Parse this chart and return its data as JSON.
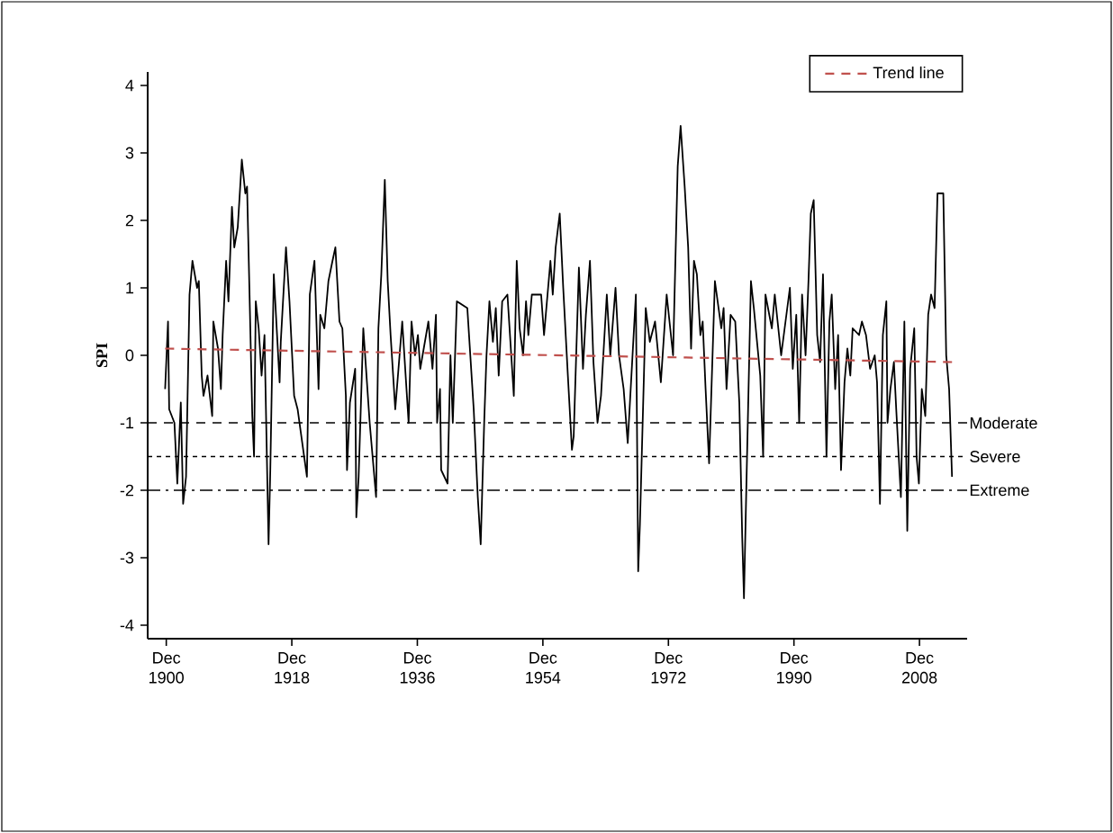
{
  "chart_data": {
    "type": "line",
    "ylabel": "SPI",
    "xlim": [
      "1898-04",
      "2015-10"
    ],
    "ylim": [
      -4.2,
      4.2
    ],
    "xticks": [
      {
        "value": "1900-12",
        "label": "Dec 1900"
      },
      {
        "value": "1918-12",
        "label": "Dec 1918"
      },
      {
        "value": "1936-12",
        "label": "Dec 1936"
      },
      {
        "value": "1954-12",
        "label": "Dec 1954"
      },
      {
        "value": "1972-12",
        "label": "Dec 1972"
      },
      {
        "value": "1990-12",
        "label": "Dec 1990"
      },
      {
        "value": "2008-12",
        "label": "Dec 2008"
      }
    ],
    "yticks": [
      -4,
      -3,
      -2,
      -1,
      0,
      1,
      2,
      3,
      4
    ],
    "grid": false,
    "legend": "top right",
    "series": [
      {
        "color": "#000000",
        "line_style": "solid",
        "x": [
          "1900-10",
          "1901-03",
          "1901-05",
          "1902-02",
          "1902-07",
          "1903-01",
          "1903-05",
          "1903-10",
          "1904-04",
          "1904-09",
          "1905-05",
          "1905-08",
          "1906-01",
          "1906-04",
          "1906-11",
          "1907-07",
          "1907-09",
          "1908-05",
          "1908-10",
          "1909-01",
          "1909-07",
          "1909-11",
          "1910-05",
          "1910-09",
          "1911-03",
          "1911-10",
          "1912-04",
          "1912-07",
          "1912-11",
          "1913-04",
          "1913-07",
          "1913-10",
          "1914-03",
          "1914-08",
          "1915-01",
          "1915-08",
          "1915-11",
          "1916-05",
          "1917-03",
          "1917-05",
          "1918-02",
          "1918-08",
          "1919-04",
          "1919-10",
          "1921-02",
          "1921-07",
          "1922-03",
          "1922-10",
          "1923-01",
          "1923-08",
          "1924-03",
          "1924-10",
          "1925-03",
          "1925-10",
          "1926-03",
          "1926-09",
          "1926-11",
          "1927-04",
          "1928-01",
          "1928-03",
          "1928-07",
          "1929-03",
          "1930-02",
          "1930-05",
          "1931-01",
          "1931-05",
          "1931-10",
          "1932-04",
          "1932-09",
          "1933-02",
          "1933-10",
          "1934-10",
          "1935-09",
          "1936-02",
          "1936-08",
          "1937-01",
          "1937-05",
          "1938-07",
          "1939-02",
          "1939-08",
          "1939-10",
          "1940-03",
          "1940-05",
          "1941-04",
          "1941-09",
          "1942-01",
          "1942-08",
          "1944-02",
          "1945-01",
          "1945-08",
          "1946-01",
          "1946-07",
          "1946-11",
          "1947-04",
          "1947-10",
          "1948-03",
          "1948-08",
          "1949-02",
          "1949-11",
          "1950-10",
          "1951-03",
          "1951-08",
          "1952-02",
          "1952-07",
          "1952-11",
          "1953-05",
          "1954-09",
          "1955-02",
          "1956-01",
          "1956-05",
          "1956-10",
          "1957-05",
          "1957-11",
          "1958-07",
          "1959-02",
          "1959-05",
          "1960-02",
          "1960-09",
          "1961-02",
          "1961-09",
          "1962-03",
          "1962-10",
          "1963-04",
          "1964-02",
          "1964-08",
          "1965-05",
          "1965-11",
          "1966-07",
          "1967-02",
          "1968-04",
          "1968-08",
          "1968-11",
          "1969-09",
          "1970-04",
          "1971-01",
          "1971-11",
          "1972-09",
          "1973-08",
          "1974-04",
          "1974-09",
          "1975-04",
          "1975-10",
          "1976-03",
          "1976-08",
          "1977-01",
          "1977-07",
          "1977-11",
          "1978-04",
          "1978-10",
          "1979-08",
          "1980-07",
          "1980-11",
          "1981-04",
          "1981-11",
          "1982-07",
          "1983-02",
          "1983-07",
          "1983-10",
          "1984-02",
          "1984-10",
          "1985-03",
          "1986-02",
          "1986-07",
          "1986-11",
          "1987-10",
          "1988-03",
          "1989-02",
          "1990-05",
          "1990-10",
          "1991-04",
          "1991-09",
          "1992-02",
          "1992-08",
          "1993-01",
          "1993-05",
          "1993-10",
          "1994-04",
          "1994-09",
          "1995-02",
          "1995-08",
          "1996-01",
          "1996-05",
          "1996-11",
          "1997-04",
          "1997-09",
          "1998-03",
          "1998-08",
          "1999-01",
          "1999-05",
          "2000-04",
          "2000-09",
          "2001-04",
          "2001-11",
          "2002-07",
          "2002-11",
          "2003-04",
          "2003-09",
          "2004-03",
          "2004-05",
          "2004-10",
          "2005-04",
          "2005-08",
          "2006-04",
          "2006-10",
          "2007-03",
          "2007-08",
          "2008-03",
          "2008-07",
          "2008-11",
          "2009-04",
          "2009-10",
          "2010-03",
          "2010-08",
          "2011-02",
          "2011-07",
          "2011-11",
          "2012-05",
          "2012-10",
          "2013-03",
          "2013-08"
        ],
        "values": [
          -0.5,
          0.5,
          -0.8,
          -1.0,
          -1.9,
          -0.7,
          -2.2,
          -1.8,
          0.9,
          1.4,
          1.0,
          1.1,
          -0.3,
          -0.6,
          -0.3,
          -0.9,
          0.5,
          0.1,
          -0.5,
          0.3,
          1.4,
          0.8,
          2.2,
          1.6,
          1.9,
          2.9,
          2.4,
          2.5,
          1.0,
          -0.9,
          -1.5,
          0.8,
          0.4,
          -0.3,
          0.3,
          -2.8,
          -1.7,
          1.2,
          -0.4,
          0.2,
          1.6,
          0.8,
          -0.6,
          -0.8,
          -1.8,
          0.9,
          1.4,
          -0.5,
          0.6,
          0.4,
          1.1,
          1.4,
          1.6,
          0.5,
          0.4,
          -0.6,
          -1.7,
          -0.7,
          -0.2,
          -2.4,
          -1.8,
          0.4,
          -1.0,
          -1.3,
          -2.1,
          0.4,
          1.2,
          2.6,
          1.1,
          0.3,
          -0.8,
          0.5,
          -1.0,
          0.5,
          0.0,
          0.3,
          -0.2,
          0.5,
          -0.2,
          0.6,
          -1.0,
          -0.5,
          -1.7,
          -1.9,
          0.0,
          -1.0,
          0.8,
          0.7,
          -0.8,
          -2.1,
          -2.8,
          -1.0,
          0.0,
          0.8,
          0.2,
          0.7,
          -0.3,
          0.8,
          0.9,
          -0.6,
          1.4,
          0.4,
          0.0,
          0.8,
          0.3,
          0.9,
          0.9,
          0.3,
          1.4,
          0.9,
          1.6,
          2.1,
          1.0,
          -0.3,
          -1.4,
          -1.2,
          1.3,
          -0.2,
          0.6,
          1.4,
          -0.1,
          -1.0,
          -0.6,
          0.9,
          0.0,
          1.0,
          0.0,
          -0.5,
          -1.3,
          0.9,
          -3.2,
          -2.5,
          0.7,
          0.2,
          0.5,
          -0.4,
          0.9,
          0.0,
          2.8,
          3.4,
          2.5,
          1.6,
          0.1,
          1.4,
          1.2,
          0.3,
          0.5,
          -0.5,
          -1.6,
          1.1,
          0.4,
          0.7,
          -0.5,
          0.6,
          0.5,
          -0.7,
          -2.7,
          -3.6,
          -2.0,
          1.1,
          0.7,
          -0.3,
          -1.5,
          0.9,
          0.4,
          0.9,
          0.0,
          1.0,
          -0.2,
          0.6,
          -1.0,
          0.9,
          0.0,
          1.1,
          2.1,
          2.3,
          0.3,
          -0.1,
          1.2,
          -1.5,
          0.5,
          0.9,
          -0.5,
          0.3,
          -1.7,
          -0.4,
          0.1,
          -0.3,
          0.4,
          0.3,
          0.5,
          0.3,
          -0.2,
          0.0,
          -0.4,
          -2.2,
          0.3,
          0.8,
          -1.0,
          -0.5,
          -0.1,
          -0.8,
          -2.1,
          0.5,
          -2.6,
          -0.2,
          0.4,
          -1.5,
          -1.9,
          -0.5,
          -0.9,
          0.6,
          0.9,
          0.7,
          2.4,
          2.4,
          2.4,
          0.0,
          -0.5,
          -1.8
        ]
      },
      {
        "name": "Trend line",
        "color": "#c0504d",
        "line_style": "dashed",
        "x": [
          "1900-10",
          "2013-08"
        ],
        "values": [
          0.1,
          -0.1
        ]
      }
    ],
    "ref_lines": [
      {
        "axis": "y",
        "value": -1,
        "label": "Moderate",
        "color": "#000000",
        "line_style": "dashed"
      },
      {
        "axis": "y",
        "value": -1.5,
        "label": "Severe",
        "color": "#000000",
        "line_style": "dotted"
      },
      {
        "axis": "y",
        "value": -2,
        "label": "Extreme",
        "color": "#000000",
        "line_style": "dashdot"
      }
    ]
  }
}
